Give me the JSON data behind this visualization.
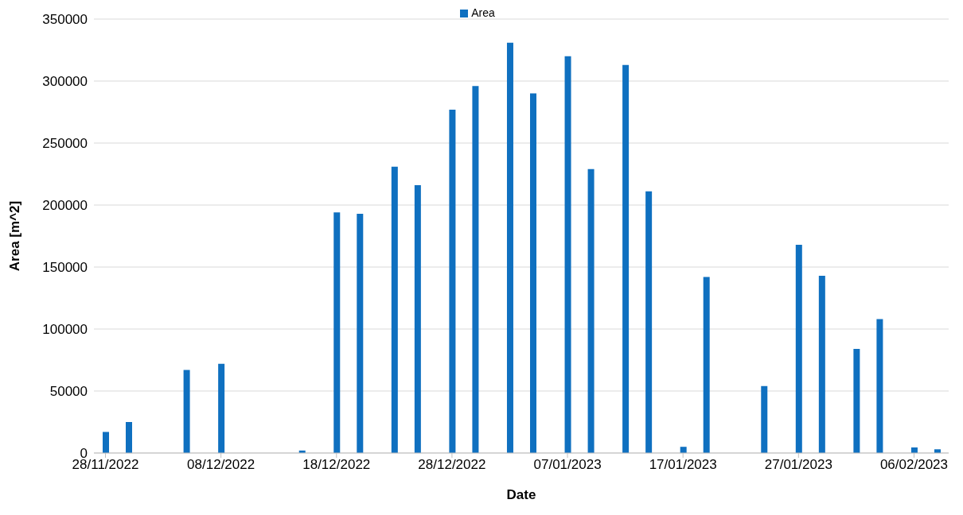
{
  "chart_data": {
    "type": "bar",
    "xlabel": "Date",
    "ylabel": "Area [m^2]",
    "x": [
      "2022-11-28",
      "2022-11-30",
      "2022-12-05",
      "2022-12-08",
      "2022-12-15",
      "2022-12-18",
      "2022-12-20",
      "2022-12-23",
      "2022-12-25",
      "2022-12-28",
      "2022-12-30",
      "2023-01-02",
      "2023-01-04",
      "2023-01-07",
      "2023-01-09",
      "2023-01-12",
      "2023-01-14",
      "2023-01-17",
      "2023-01-19",
      "2023-01-24",
      "2023-01-27",
      "2023-01-29",
      "2023-02-01",
      "2023-02-03",
      "2023-02-06",
      "2023-02-08"
    ],
    "series": [
      {
        "name": "Area",
        "color": "#0f70c0",
        "values": [
          17000,
          25000,
          67000,
          72000,
          2000,
          194000,
          193000,
          231000,
          216000,
          277000,
          296000,
          331000,
          290000,
          320000,
          229000,
          313000,
          211000,
          5000,
          142000,
          54000,
          168000,
          143000,
          84000,
          108000,
          4500,
          3000
        ]
      }
    ],
    "xlim": [
      "2022-11-27",
      "2023-02-09"
    ],
    "xticks": [
      {
        "value": "2022-11-28",
        "label": "28/11/2022"
      },
      {
        "value": "2022-12-08",
        "label": "08/12/2022"
      },
      {
        "value": "2022-12-18",
        "label": "18/12/2022"
      },
      {
        "value": "2022-12-28",
        "label": "28/12/2022"
      },
      {
        "value": "2023-01-07",
        "label": "07/01/2023"
      },
      {
        "value": "2023-01-17",
        "label": "17/01/2023"
      },
      {
        "value": "2023-01-27",
        "label": "27/01/2023"
      },
      {
        "value": "2023-02-06",
        "label": "06/02/2023"
      }
    ],
    "ylim": [
      0,
      350000
    ],
    "yticks": [
      0,
      50000,
      100000,
      150000,
      200000,
      250000,
      300000,
      350000
    ],
    "grid": "y",
    "legend": "top"
  }
}
